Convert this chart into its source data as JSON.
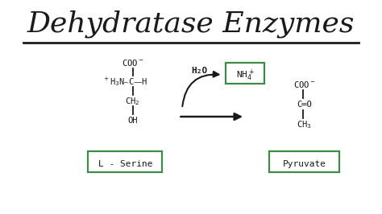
{
  "title": "Dehydratase Enzymes",
  "title_fontsize": 26,
  "title_font": "serif",
  "bg_color": "#ffffff",
  "green_color": "#3d8b45",
  "black_color": "#1a1a1a",
  "l_serine_label": "L - Serine",
  "pyruvate_label": "Pyruvate",
  "h2o_label": "H₂O",
  "nh4_label": "NH₄⁺",
  "font_size_chem": 7.5,
  "font_size_label": 8.0
}
